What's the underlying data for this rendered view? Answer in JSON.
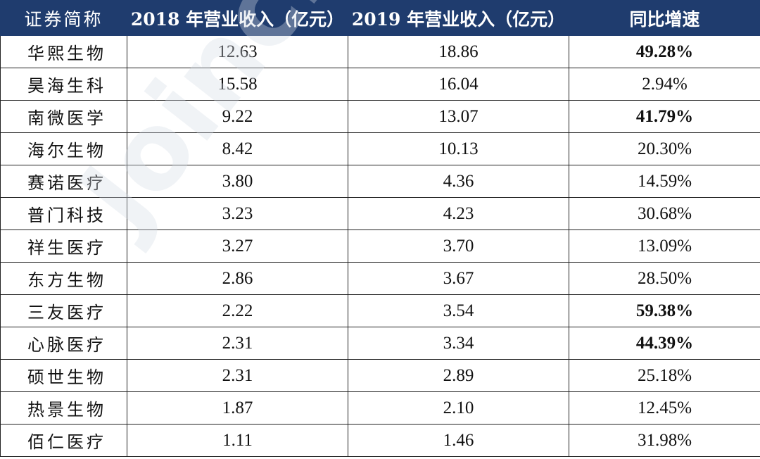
{
  "watermark": "Joinchain",
  "headers": [
    "证券简称",
    "2018 年营业收入（亿元）",
    "2019 年营业收入（亿元）",
    "同比增速"
  ],
  "rows": [
    {
      "name": "华熙生物",
      "rev2018": "12.63",
      "rev2019": "18.86",
      "growth": "49.28%",
      "bold": true
    },
    {
      "name": "昊海生科",
      "rev2018": "15.58",
      "rev2019": "16.04",
      "growth": "2.94%",
      "bold": false
    },
    {
      "name": "南微医学",
      "rev2018": "9.22",
      "rev2019": "13.07",
      "growth": "41.79%",
      "bold": true
    },
    {
      "name": "海尔生物",
      "rev2018": "8.42",
      "rev2019": "10.13",
      "growth": "20.30%",
      "bold": false
    },
    {
      "name": "赛诺医疗",
      "rev2018": "3.80",
      "rev2019": "4.36",
      "growth": "14.59%",
      "bold": false
    },
    {
      "name": "普门科技",
      "rev2018": "3.23",
      "rev2019": "4.23",
      "growth": "30.68%",
      "bold": false
    },
    {
      "name": "祥生医疗",
      "rev2018": "3.27",
      "rev2019": "3.70",
      "growth": "13.09%",
      "bold": false
    },
    {
      "name": "东方生物",
      "rev2018": "2.86",
      "rev2019": "3.67",
      "growth": "28.50%",
      "bold": false
    },
    {
      "name": "三友医疗",
      "rev2018": "2.22",
      "rev2019": "3.54",
      "growth": "59.38%",
      "bold": true
    },
    {
      "name": "心脉医疗",
      "rev2018": "2.31",
      "rev2019": "3.34",
      "growth": "44.39%",
      "bold": true
    },
    {
      "name": "硕世生物",
      "rev2018": "2.31",
      "rev2019": "2.89",
      "growth": "25.18%",
      "bold": false
    },
    {
      "name": "热景生物",
      "rev2018": "1.87",
      "rev2019": "2.10",
      "growth": "12.45%",
      "bold": false
    },
    {
      "name": "佰仁医疗",
      "rev2018": "1.11",
      "rev2019": "1.46",
      "growth": "31.98%",
      "bold": false
    }
  ],
  "colors": {
    "header_bg": "#1f3c6e",
    "header_text": "#ffffff",
    "border": "#222222"
  }
}
